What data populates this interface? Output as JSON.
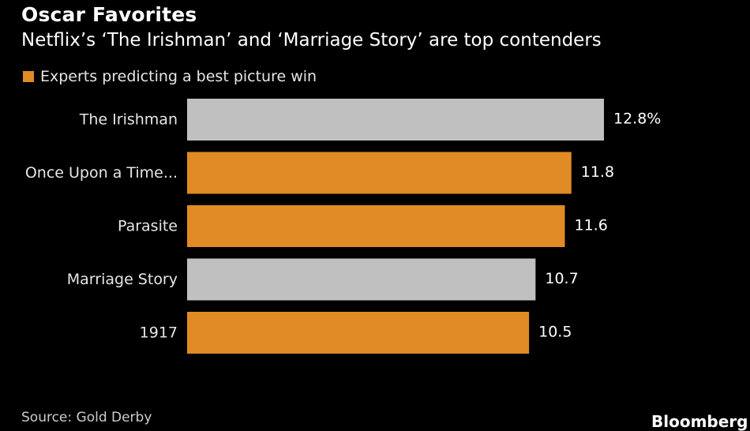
{
  "chart_data": {
    "type": "bar",
    "orientation": "horizontal",
    "title": "Oscar Favorites",
    "subtitle": "Netflix’s ‘The Irishman’ and ‘Marriage Story’ are top contenders",
    "legend": [
      {
        "label": "Experts predicting a best picture win",
        "color": "#e08b25"
      }
    ],
    "categories": [
      "The Irishman",
      "Once Upon a Time...",
      "Parasite",
      "Marriage Story",
      "1917"
    ],
    "values": [
      12.8,
      11.8,
      11.6,
      10.7,
      10.5
    ],
    "value_labels": [
      "12.8%",
      "11.8",
      "11.6",
      "10.7",
      "10.5"
    ],
    "bar_colors": [
      "#c0c0c0",
      "#e08b25",
      "#e08b25",
      "#c0c0c0",
      "#e08b25"
    ],
    "xlim": [
      0,
      12.8
    ],
    "xlabel": "",
    "ylabel": "",
    "grid": false,
    "source": "Source: Gold Derby",
    "brand": "Bloomberg"
  }
}
